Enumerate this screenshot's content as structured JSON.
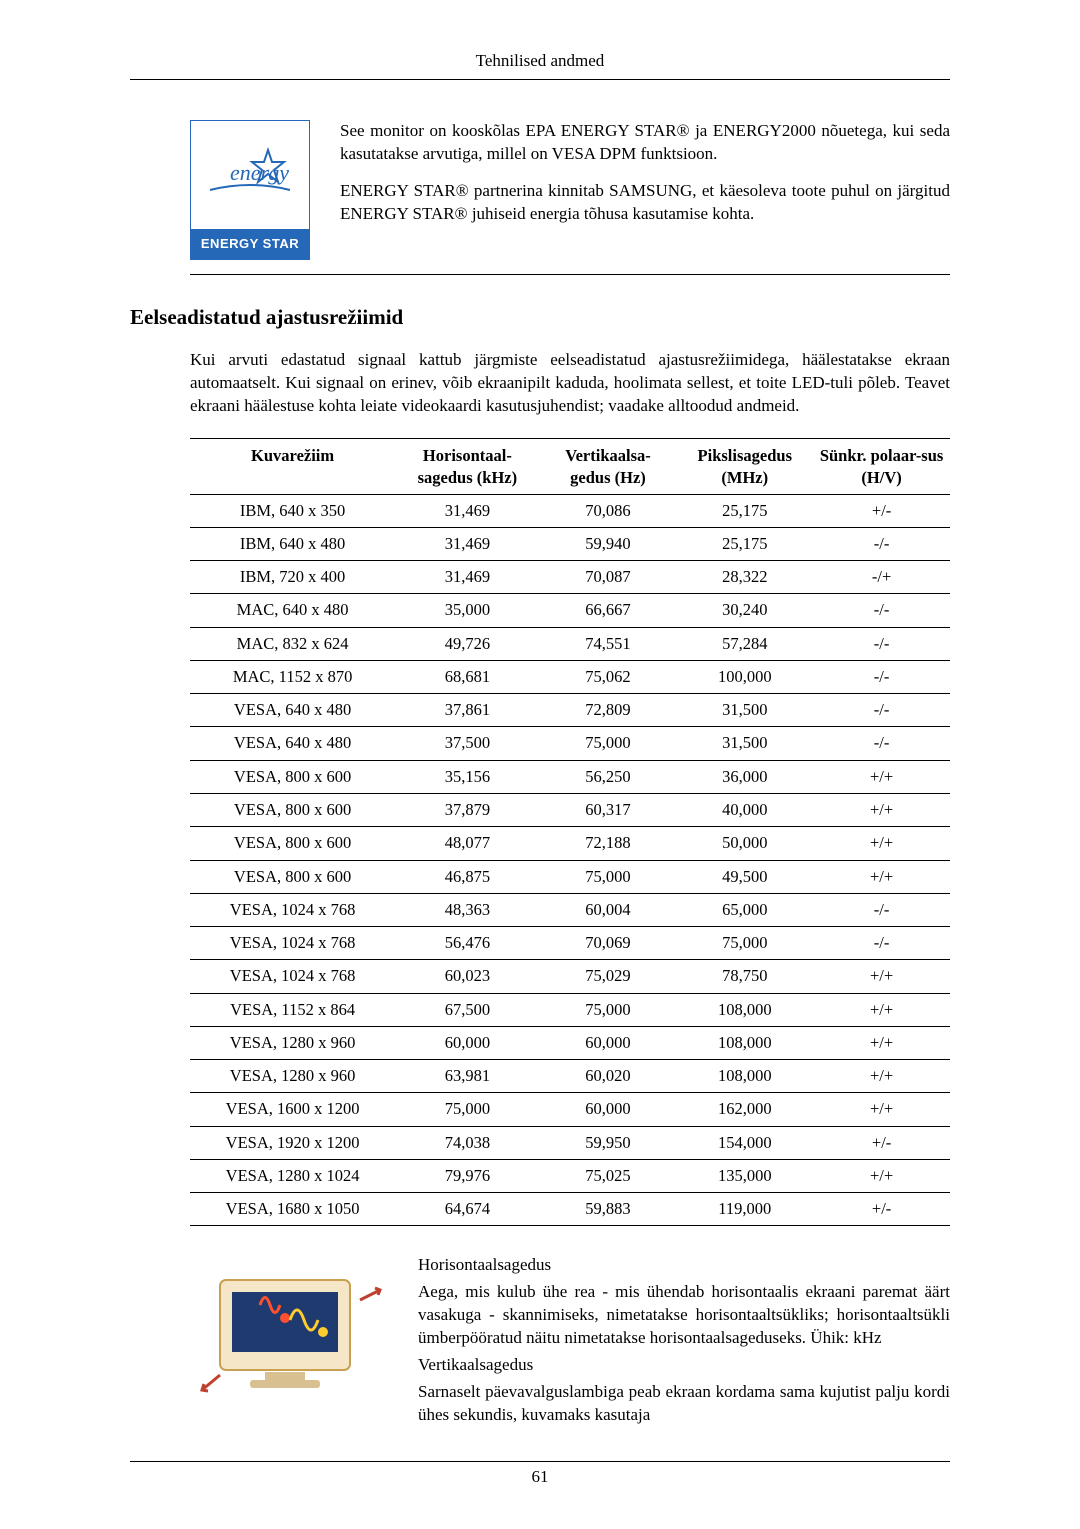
{
  "header": {
    "title": "Tehnilised andmed"
  },
  "energy": {
    "logo_script": "energy",
    "logo_label": "ENERGY STAR",
    "para1": "See monitor on kooskõlas EPA ENERGY STAR® ja ENERGY2000 nõuetega, kui seda kasutatakse arvutiga, millel on VESA DPM funktsioon.",
    "para2": "ENERGY STAR® partnerina kinnitab SAMSUNG, et käesoleva toote puhul on järgitud ENERGY STAR® juhiseid energia tõhusa kasutamise kohta."
  },
  "section_heading": "Eelseadistatud ajastusrežiimid",
  "intro_para": "Kui arvuti edastatud signaal kattub järgmiste eelseadistatud ajastusrežiimidega, häälestatakse ekraan automaatselt. Kui signaal on erinev, võib ekraanipilt kaduda, hoolimata sellest, et toite LED-tuli põleb. Teavet ekraani häälestuse kohta leiate videokaardi kasutusjuhendist; vaadake alltoodud andmeid.",
  "table": {
    "columns": [
      "Kuvarežiim",
      "Horisontaal-sagedus (kHz)",
      "Vertikaalsa-gedus (Hz)",
      "Pikslisagedus (MHz)",
      "Sünkr. polaar-sus (H/V)"
    ],
    "rows": [
      [
        "IBM, 640 x 350",
        "31,469",
        "70,086",
        "25,175",
        "+/-"
      ],
      [
        "IBM, 640 x 480",
        "31,469",
        "59,940",
        "25,175",
        "-/-"
      ],
      [
        "IBM, 720 x 400",
        "31,469",
        "70,087",
        "28,322",
        "-/+"
      ],
      [
        "MAC, 640 x 480",
        "35,000",
        "66,667",
        "30,240",
        "-/-"
      ],
      [
        "MAC, 832 x 624",
        "49,726",
        "74,551",
        "57,284",
        "-/-"
      ],
      [
        "MAC, 1152 x 870",
        "68,681",
        "75,062",
        "100,000",
        "-/-"
      ],
      [
        "VESA, 640 x 480",
        "37,861",
        "72,809",
        "31,500",
        "-/-"
      ],
      [
        "VESA, 640 x 480",
        "37,500",
        "75,000",
        "31,500",
        "-/-"
      ],
      [
        "VESA, 800 x 600",
        "35,156",
        "56,250",
        "36,000",
        "+/+"
      ],
      [
        "VESA, 800 x 600",
        "37,879",
        "60,317",
        "40,000",
        "+/+"
      ],
      [
        "VESA, 800 x 600",
        "48,077",
        "72,188",
        "50,000",
        "+/+"
      ],
      [
        "VESA, 800 x 600",
        "46,875",
        "75,000",
        "49,500",
        "+/+"
      ],
      [
        "VESA, 1024 x 768",
        "48,363",
        "60,004",
        "65,000",
        "-/-"
      ],
      [
        "VESA, 1024 x 768",
        "56,476",
        "70,069",
        "75,000",
        "-/-"
      ],
      [
        "VESA, 1024 x 768",
        "60,023",
        "75,029",
        "78,750",
        "+/+"
      ],
      [
        "VESA, 1152 x 864",
        "67,500",
        "75,000",
        "108,000",
        "+/+"
      ],
      [
        "VESA, 1280 x 960",
        "60,000",
        "60,000",
        "108,000",
        "+/+"
      ],
      [
        "VESA, 1280 x 960",
        "63,981",
        "60,020",
        "108,000",
        "+/+"
      ],
      [
        "VESA, 1600 x 1200",
        "75,000",
        "60,000",
        "162,000",
        "+/+"
      ],
      [
        "VESA, 1920 x 1200",
        "74,038",
        "59,950",
        "154,000",
        "+/-"
      ],
      [
        "VESA, 1280 x 1024",
        "79,976",
        "75,025",
        "135,000",
        "+/+"
      ],
      [
        "VESA, 1680 x 1050",
        "64,674",
        "59,883",
        "119,000",
        "+/-"
      ]
    ]
  },
  "info": {
    "h_sub": "Horisontaalsagedus",
    "h_text": "Aega, mis kulub ühe rea - mis ühendab horisontaalis ekraani paremat äärt vasakuga - skannimiseks, nimetatakse horisontaaltsükliks; horisontaaltsükli ümberpööratud näitu nimetatakse horisontaalsageduseks. Ühik: kHz",
    "v_sub": "Vertikaalsagedus",
    "v_text": "Sarnaselt päevavalguslambiga peab ekraan kordama sama kujutist palju kordi ühes sekundis, kuvamaks kasutaja"
  },
  "footer": {
    "page": "61"
  }
}
